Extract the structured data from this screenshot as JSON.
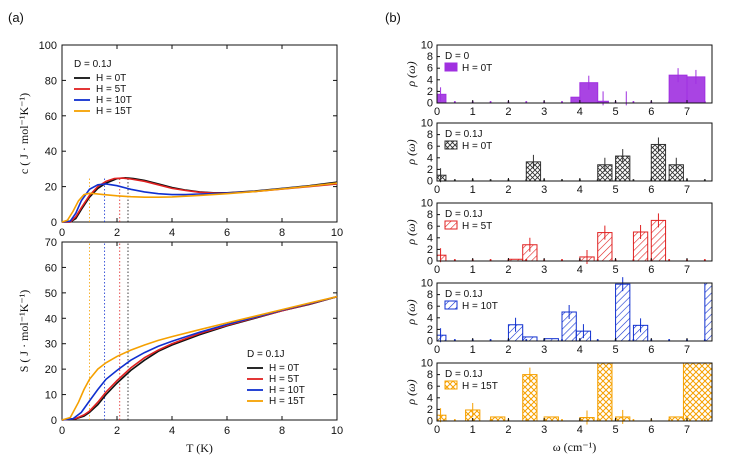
{
  "panel_a_label": "(a)",
  "panel_b_label": "(b)",
  "colors": {
    "black": "#111111",
    "red": "#e02020",
    "blue": "#1030d0",
    "orange": "#f5a000",
    "purple": "#a030e0",
    "gray": "#333333"
  },
  "chart_data": [
    {
      "type": "line",
      "title": "",
      "xlabel": "",
      "ylabel": "c ( J · mol⁻¹K⁻¹)",
      "xlim": [
        0,
        10
      ],
      "ylim": [
        0,
        100
      ],
      "xticks": [
        "0",
        "2",
        "4",
        "6",
        "8",
        "10"
      ],
      "yticks": [
        "0",
        "20",
        "40",
        "60",
        "80",
        "100"
      ],
      "legend_title": "D = 0.1J",
      "series": [
        {
          "name": "H = 0T",
          "color": "#111111",
          "x": [
            0,
            0.3,
            0.5,
            0.7,
            1.0,
            1.3,
            1.6,
            2.0,
            2.3,
            2.6,
            3.0,
            3.5,
            4.0,
            4.5,
            5.0,
            5.5,
            6.0,
            7.0,
            8.0,
            9.0,
            10.0
          ],
          "y": [
            0,
            0,
            2,
            7,
            14,
            19,
            22,
            24.5,
            25,
            24.5,
            23.5,
            21.5,
            19.5,
            18,
            17,
            16.5,
            16.5,
            17.5,
            19,
            20.5,
            22.5
          ]
        },
        {
          "name": "H = 5T",
          "color": "#e02020",
          "x": [
            0,
            0.3,
            0.5,
            0.7,
            1.0,
            1.3,
            1.6,
            1.9,
            2.2,
            2.5,
            3.0,
            3.5,
            4.0,
            4.5,
            5.0,
            5.5,
            6.0,
            7.0,
            8.0,
            9.0,
            10.0
          ],
          "y": [
            0,
            0,
            3,
            8,
            15,
            20,
            23,
            24.5,
            24.8,
            24.3,
            23,
            21,
            19,
            17.8,
            16.8,
            16.3,
            16.3,
            17.2,
            18.6,
            20,
            21.5
          ]
        },
        {
          "name": "H = 10T",
          "color": "#1030d0",
          "x": [
            0,
            0.3,
            0.5,
            0.7,
            1.0,
            1.3,
            1.6,
            2.0,
            2.5,
            3.0,
            3.5,
            4.0,
            4.5,
            5.0,
            5.5,
            6.0,
            7.0,
            8.0,
            9.0,
            10.0
          ],
          "y": [
            0,
            0.5,
            5,
            12,
            18.5,
            21,
            21.5,
            20.5,
            18.5,
            17,
            16,
            15.5,
            15.5,
            15.8,
            16,
            16.3,
            17.3,
            18.8,
            20.3,
            22
          ]
        },
        {
          "name": "H = 15T",
          "color": "#f5a000",
          "x": [
            0,
            0.2,
            0.4,
            0.6,
            0.8,
            1.0,
            1.2,
            1.5,
            2.0,
            2.5,
            3.0,
            3.5,
            4.0,
            5.0,
            6.0,
            7.0,
            8.0,
            9.0,
            10.0
          ],
          "y": [
            0,
            1,
            6,
            12,
            15.5,
            16.2,
            16,
            15.5,
            14.8,
            14.3,
            14,
            14,
            14.2,
            15,
            16,
            17.2,
            18.7,
            20.2,
            22
          ]
        }
      ],
      "markers_x": [
        1.0,
        1.55,
        2.1,
        2.4
      ]
    },
    {
      "type": "line",
      "title": "",
      "xlabel": "T (K)",
      "ylabel": "S ( J · mol⁻¹K⁻¹)",
      "xlim": [
        0,
        10
      ],
      "ylim": [
        0,
        70
      ],
      "xticks": [
        "0",
        "2",
        "4",
        "6",
        "8",
        "10"
      ],
      "yticks": [
        "0",
        "10",
        "20",
        "30",
        "40",
        "50",
        "60",
        "70"
      ],
      "legend_title": "D = 0.1J",
      "series": [
        {
          "name": "H = 0T",
          "color": "#111111",
          "x": [
            0,
            0.5,
            0.8,
            1.0,
            1.3,
            1.6,
            2.0,
            2.5,
            3.0,
            3.5,
            4.0,
            5.0,
            6.0,
            7.0,
            8.0,
            9.0,
            10.0
          ],
          "y": [
            0,
            0.5,
            1.5,
            3,
            6,
            10,
            14.5,
            19.5,
            23.5,
            27,
            29.5,
            33.5,
            37,
            40,
            43,
            45.5,
            48.5
          ]
        },
        {
          "name": "H = 5T",
          "color": "#e02020",
          "x": [
            0,
            0.5,
            0.8,
            1.0,
            1.3,
            1.6,
            2.0,
            2.5,
            3.0,
            3.5,
            4.0,
            5.0,
            6.0,
            7.0,
            8.0,
            9.0,
            10.0
          ],
          "y": [
            0,
            0.6,
            2,
            3.5,
            7,
            11,
            15.5,
            20.5,
            24.5,
            27.5,
            30,
            34,
            37.3,
            40.2,
            43,
            45.6,
            48.5
          ]
        },
        {
          "name": "H = 10T",
          "color": "#1030d0",
          "x": [
            0,
            0.4,
            0.7,
            1.0,
            1.3,
            1.6,
            2.0,
            2.5,
            3.0,
            3.5,
            4.0,
            5.0,
            6.0,
            7.0,
            8.0,
            9.0,
            10.0
          ],
          "y": [
            0,
            0.5,
            3,
            7.5,
            12,
            16,
            19.5,
            23.5,
            26.5,
            29,
            31,
            34.5,
            37.6,
            40.4,
            43.2,
            45.8,
            48.5
          ]
        },
        {
          "name": "H = 15T",
          "color": "#f5a000",
          "x": [
            0,
            0.3,
            0.6,
            0.8,
            1.0,
            1.3,
            1.6,
            2.0,
            2.5,
            3.0,
            3.5,
            4.0,
            5.0,
            6.0,
            7.0,
            8.0,
            9.0,
            10.0
          ],
          "y": [
            0,
            1,
            7,
            12,
            16,
            20,
            22.5,
            25,
            27.5,
            29.5,
            31.3,
            32.8,
            35.5,
            38.2,
            40.8,
            43.4,
            46,
            48.5
          ]
        }
      ],
      "markers_x": [
        1.0,
        1.55,
        2.1,
        2.4
      ]
    },
    {
      "type": "bar",
      "panel": "b",
      "legend_title": "D = 0",
      "legend_entry": "H = 0T",
      "color": "#a030e0",
      "hatch": "solid",
      "ylabel": "ρ (ω)",
      "xlim": [
        0,
        7.7
      ],
      "ylim": [
        0,
        10
      ],
      "xticks": [
        "0",
        "1",
        "2",
        "3",
        "4",
        "5",
        "6",
        "7"
      ],
      "yticks": [
        "0",
        "2",
        "4",
        "6",
        "8",
        "10"
      ],
      "bins": [
        [
          0,
          0.25,
          1.5
        ],
        [
          3.75,
          4.0,
          1.0
        ],
        [
          4.0,
          4.5,
          3.5
        ],
        [
          4.5,
          4.8,
          0.3
        ],
        [
          6.5,
          7.0,
          4.8
        ],
        [
          7.0,
          7.5,
          4.5
        ]
      ],
      "error_bars": [
        [
          0.1,
          1.5
        ],
        [
          4.25,
          3.5
        ],
        [
          4.65,
          0.8
        ],
        [
          6.75,
          4.8
        ],
        [
          7.25,
          4.5
        ],
        [
          5.3,
          0.8
        ]
      ]
    },
    {
      "type": "bar",
      "panel": "b",
      "legend_title": "D = 0.1J",
      "legend_entry": "H = 0T",
      "color": "#333333",
      "hatch": "cross",
      "ylabel": "ρ (ω)",
      "xlim": [
        0,
        7.7
      ],
      "ylim": [
        0,
        10
      ],
      "xticks": [
        "0",
        "1",
        "2",
        "3",
        "4",
        "5",
        "6",
        "7"
      ],
      "yticks": [
        "0",
        "2",
        "4",
        "6",
        "8",
        "10"
      ],
      "bins": [
        [
          0,
          0.25,
          1.0
        ],
        [
          2.5,
          2.9,
          3.3
        ],
        [
          4.5,
          4.9,
          2.8
        ],
        [
          5.0,
          5.4,
          4.3
        ],
        [
          6.0,
          6.4,
          6.3
        ],
        [
          6.5,
          6.9,
          2.8
        ]
      ],
      "error_bars": [
        [
          0.1,
          1.0
        ],
        [
          2.7,
          3.3
        ],
        [
          4.7,
          2.8
        ],
        [
          5.2,
          4.3
        ],
        [
          6.2,
          6.3
        ],
        [
          6.7,
          2.8
        ]
      ]
    },
    {
      "type": "bar",
      "panel": "b",
      "legend_title": "D = 0.1J",
      "legend_entry": "H = 5T",
      "color": "#e02020",
      "hatch": "diag",
      "ylabel": "ρ (ω)",
      "xlim": [
        0,
        7.7
      ],
      "ylim": [
        0,
        10
      ],
      "xticks": [
        "0",
        "1",
        "2",
        "3",
        "4",
        "5",
        "6",
        "7"
      ],
      "yticks": [
        "0",
        "2",
        "4",
        "6",
        "8",
        "10"
      ],
      "bins": [
        [
          0,
          0.25,
          1.0
        ],
        [
          2.0,
          2.4,
          0.3
        ],
        [
          2.4,
          2.8,
          2.8
        ],
        [
          4.0,
          4.4,
          0.7
        ],
        [
          4.5,
          4.9,
          4.9
        ],
        [
          5.5,
          5.9,
          5.0
        ],
        [
          6.0,
          6.4,
          7.0
        ]
      ],
      "error_bars": [
        [
          0.1,
          1.0
        ],
        [
          2.6,
          2.8
        ],
        [
          4.2,
          0.7
        ],
        [
          4.7,
          4.9
        ],
        [
          5.7,
          5.0
        ],
        [
          6.2,
          7.0
        ]
      ]
    },
    {
      "type": "bar",
      "panel": "b",
      "legend_title": "D = 0.1J",
      "legend_entry": "H = 10T",
      "color": "#1030d0",
      "hatch": "diag",
      "ylabel": "ρ (ω)",
      "xlim": [
        0,
        7.7
      ],
      "ylim": [
        0,
        10
      ],
      "xticks": [
        "0",
        "1",
        "2",
        "3",
        "4",
        "5",
        "6",
        "7"
      ],
      "yticks": [
        "0",
        "2",
        "4",
        "6",
        "8",
        "10"
      ],
      "bins": [
        [
          0,
          0.25,
          1.0
        ],
        [
          2.0,
          2.4,
          2.8
        ],
        [
          2.4,
          2.8,
          0.7
        ],
        [
          3.0,
          3.4,
          0.4
        ],
        [
          3.5,
          3.9,
          5.0
        ],
        [
          3.9,
          4.3,
          1.7
        ],
        [
          5.0,
          5.4,
          9.8
        ],
        [
          5.5,
          5.9,
          2.7
        ],
        [
          7.5,
          7.7,
          10
        ]
      ],
      "error_bars": [
        [
          0.1,
          1.0
        ],
        [
          2.2,
          2.8
        ],
        [
          3.7,
          5.0
        ],
        [
          4.1,
          1.7
        ],
        [
          5.2,
          9.8
        ],
        [
          5.7,
          2.7
        ]
      ]
    },
    {
      "type": "bar",
      "panel": "b",
      "legend_title": "D = 0.1J",
      "legend_entry": "H = 15T",
      "color": "#f5a000",
      "hatch": "cross",
      "ylabel": "ρ (ω)",
      "xlabel": "ω (cm⁻¹)",
      "xlim": [
        0,
        7.7
      ],
      "ylim": [
        0,
        10
      ],
      "xticks": [
        "0",
        "1",
        "2",
        "3",
        "4",
        "5",
        "6",
        "7"
      ],
      "yticks": [
        "0",
        "2",
        "4",
        "6",
        "8",
        "10"
      ],
      "bins": [
        [
          0,
          0.25,
          1.0
        ],
        [
          0.8,
          1.2,
          1.9
        ],
        [
          1.5,
          1.9,
          0.7
        ],
        [
          2.4,
          2.8,
          8.0
        ],
        [
          3.0,
          3.4,
          0.7
        ],
        [
          4.0,
          4.4,
          0.6
        ],
        [
          4.5,
          4.9,
          10
        ],
        [
          5.0,
          5.4,
          0.7
        ],
        [
          6.5,
          6.9,
          0.7
        ],
        [
          6.9,
          7.7,
          10
        ]
      ],
      "error_bars": [
        [
          0.1,
          1.0
        ],
        [
          1.0,
          1.9
        ],
        [
          2.6,
          8.0
        ],
        [
          4.2,
          0.6
        ],
        [
          5.2,
          0.7
        ]
      ]
    }
  ]
}
